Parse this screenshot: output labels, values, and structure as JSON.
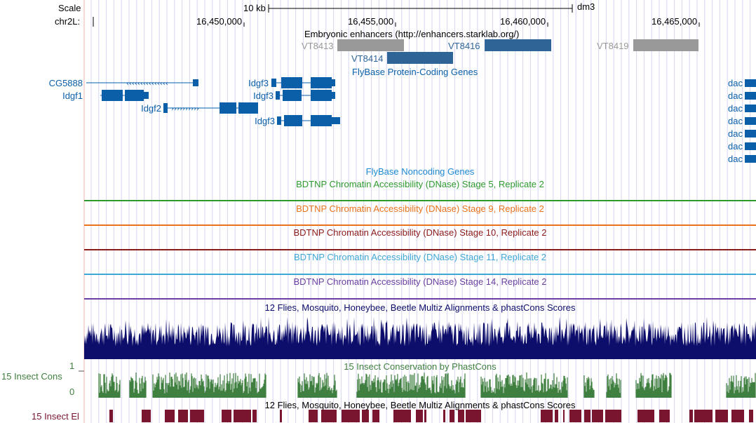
{
  "ruler": {
    "scale_label": "Scale",
    "scale_value": "10 kb",
    "assembly": "dm3",
    "chrom_label": "chr2L:",
    "positions": [
      "16,450,000",
      "16,455,000",
      "16,460,000",
      "16,465,000"
    ]
  },
  "enhancers": {
    "title": "Embryonic enhancers (http://enhancers.starklab.org/)",
    "items": [
      {
        "label": "VT8413",
        "color": "#999999"
      },
      {
        "label": "VT8414",
        "color": "#2e6496"
      },
      {
        "label": "VT8416",
        "color": "#2e6496"
      },
      {
        "label": "VT8419",
        "color": "#999999"
      }
    ]
  },
  "flybase_coding": {
    "title": "FlyBase Protein-Coding Genes",
    "color": "#0a5fa8",
    "genes": [
      "CG5888",
      "Idgf1",
      "Idgf2",
      "Idgf3",
      "Idgf3",
      "Idgf3",
      "dac",
      "dac",
      "dac",
      "dac",
      "dac",
      "dac",
      "dac"
    ]
  },
  "flybase_noncoding": {
    "title": "FlyBase Noncoding Genes",
    "color": "#1e88d0"
  },
  "dnase_tracks": [
    {
      "title": "BDTNP Chromatin Accessibility (DNase) Stage 5, Replicate 2",
      "color": "#2e9a2e"
    },
    {
      "title": "BDTNP Chromatin Accessibility (DNase) Stage 9, Replicate 2",
      "color": "#e8731c"
    },
    {
      "title": "BDTNP Chromatin Accessibility (DNase) Stage 10, Replicate 2",
      "color": "#8b1a1a"
    },
    {
      "title": "BDTNP Chromatin Accessibility (DNase) Stage 11, Replicate 2",
      "color": "#3fa7d6"
    },
    {
      "title": "BDTNP Chromatin Accessibility (DNase) Stage 14, Replicate 2",
      "color": "#6a3fa0"
    }
  ],
  "multiz": {
    "title": "12 Flies, Mosquito, Honeybee, Beetle Multiz Alignments & phastCons Scores",
    "color": "#0d0d6b"
  },
  "phastcons": {
    "title": "15 Insect Conservation by PhastCons",
    "side_label": "15 Insect Cons",
    "max_label": "1",
    "min_label": "0",
    "color": "#3f7f3f"
  },
  "elements": {
    "title": "12 Flies, Mosquito, Honeybee, Beetle Multiz Alignments & phastCons Scores",
    "side_label": "15 Insect El",
    "color": "#7a1530"
  }
}
